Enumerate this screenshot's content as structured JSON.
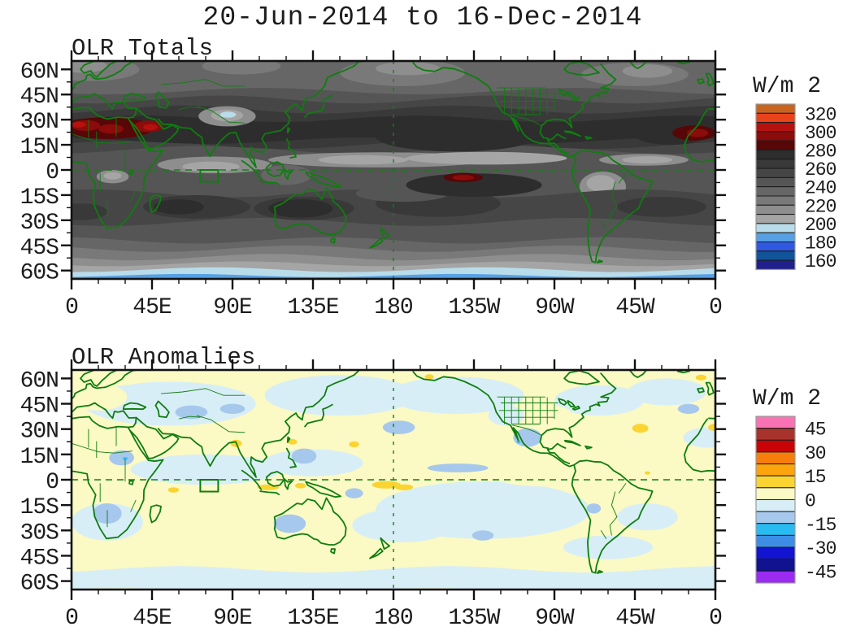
{
  "main_title": "20-Jun-2014 to 16-Dec-2014",
  "panels": [
    {
      "title": "OLR Totals",
      "units": "W/m 2"
    },
    {
      "title": "OLR Anomalies",
      "units": "W/m 2"
    }
  ],
  "colors": {
    "background": "#FFFFFF",
    "frame": "#111111",
    "text": "#1C1C1C",
    "coastline_green": "#0F7D0F",
    "grid_dash_green": "#138013"
  },
  "map_overlay": {
    "equator_line": "dashed green line at 0 latitude",
    "dateline_line": "dashed green vertical line at 180",
    "index_box": "green rectangle ~72-82E, 0-7S",
    "coastlines": "green with country/state borders"
  },
  "chart_data": [
    {
      "type": "heatmap",
      "title": "OLR Totals",
      "units": "W/m 2",
      "projection": "equirectangular",
      "lon_domain": [
        0,
        360
      ],
      "lat_domain": [
        -65,
        65
      ],
      "lon_ticks": [
        "0",
        "45E",
        "90E",
        "135E",
        "180",
        "135W",
        "90W",
        "45W",
        "0"
      ],
      "lat_ticks": [
        "60N",
        "45N",
        "30N",
        "15N",
        "0",
        "15S",
        "30S",
        "45S",
        "60S"
      ],
      "colorbar": {
        "position": "right",
        "orientation": "vertical",
        "range": [
          160,
          320
        ],
        "level_step": 10,
        "labels": [
          "320",
          "300",
          "280",
          "260",
          "240",
          "220",
          "200",
          "180",
          "160"
        ],
        "colors_top_to_bottom": [
          "#C8641E",
          "#E8431A",
          "#B5120F",
          "#8C0B0B",
          "#570707",
          "#2D2D2D",
          "#393939",
          "#464646",
          "#555555",
          "#666666",
          "#797979",
          "#8E8E8E",
          "#A5A5A5",
          "#B9DCEA",
          "#57A0E4",
          "#2E59E0",
          "#11549A",
          "#20208C"
        ]
      },
      "features": [
        {
          "region": "Sahara / Arabian Peninsula (0-50E, 18-32N)",
          "olr_wm2": "280-310",
          "shade": "dark red"
        },
        {
          "region": "West Africa near map right edge (15W, 15-27N)",
          "olr_wm2": "280-300",
          "shade": "dark red"
        },
        {
          "region": "SE tropical Pacific (150-130W, 2-8S)",
          "olr_wm2": "280-300",
          "shade": "dark red"
        },
        {
          "region": "Subtropical bands 15-35N and 12-30S",
          "olr_wm2": "260-280",
          "shade": "near-black gray"
        },
        {
          "region": "ITCZ 2-10N across Pacific and Atlantic",
          "olr_wm2": "200-220",
          "shade": "light gray"
        },
        {
          "region": "Congo basin and Amazon",
          "olr_wm2": "210-230",
          "shade": "light gray"
        },
        {
          "region": "Tibetan Plateau (85-95E, 30-35N)",
          "olr_wm2": "190-200",
          "shade": "pale blue"
        },
        {
          "region": "Southern Ocean 55-62S",
          "olr_wm2": "180-200",
          "shade": "pale blue"
        },
        {
          "region": "Antarctic margin 62-65S",
          "olr_wm2": "170-180",
          "shade": "medium blue"
        }
      ]
    },
    {
      "type": "heatmap",
      "title": "OLR Anomalies",
      "units": "W/m 2",
      "projection": "equirectangular",
      "lon_domain": [
        0,
        360
      ],
      "lat_domain": [
        -65,
        65
      ],
      "lon_ticks": [
        "0",
        "45E",
        "90E",
        "135E",
        "180",
        "135W",
        "90W",
        "45W",
        "0"
      ],
      "lat_ticks": [
        "60N",
        "45N",
        "30N",
        "15N",
        "0",
        "15S",
        "30S",
        "45S",
        "60S"
      ],
      "colorbar": {
        "position": "right",
        "orientation": "vertical",
        "range": [
          -45,
          45
        ],
        "level_step": 7.5,
        "labels": [
          "45",
          "30",
          "15",
          "0",
          "-15",
          "-30",
          "-45"
        ],
        "colors_top_to_bottom": [
          "#F973B4",
          "#A8322C",
          "#C80407",
          "#F87E0C",
          "#FCA40C",
          "#FBD431",
          "#FBF9C4",
          "#D8EEF7",
          "#A6C8EC",
          "#28BCF2",
          "#3E8DE4",
          "#1313D2",
          "#10128F",
          "#9B2BF0"
        ]
      },
      "features": [
        {
          "region": "Equatorial Pacific near date line (165E-170W, 0-6S)",
          "anomaly_wm2": "+7.5 to +15",
          "shade": "gold"
        },
        {
          "region": "Java Sea / Banda Sea (105-130E, 2-6S)",
          "anomaly_wm2": "+7.5 to +15",
          "shade": "gold"
        },
        {
          "region": "Bay of Bengal / Myanmar (~92E, 21N)",
          "anomaly_wm2": "+7.5 to +15",
          "shade": "gold"
        },
        {
          "region": "East of Taiwan (~123E, 22N) and ~158E, 21N",
          "anomaly_wm2": "+7.5 to +15",
          "shade": "gold"
        },
        {
          "region": "Central Indian Ocean (~57E, 6S)",
          "anomaly_wm2": "+7.5 to +15",
          "shade": "gold"
        },
        {
          "region": "Subtropical North Atlantic (~42W, 30N)",
          "anomaly_wm2": "+7.5 to +15",
          "shade": "gold"
        },
        {
          "region": "NE tropical Pacific 5-9N (180-130W)",
          "anomaly_wm2": "-7.5 to -15",
          "shade": "light blue"
        },
        {
          "region": "Sudan / Sahel (~27E, 13N)",
          "anomaly_wm2": "-7.5 to -15",
          "shade": "light blue"
        },
        {
          "region": "Southern Africa (~22E, 20S)",
          "anomaly_wm2": "-7.5 to -15",
          "shade": "light blue"
        },
        {
          "region": "Central Asia (60-95E, 38-45N)",
          "anomaly_wm2": "-7.5 to -15",
          "shade": "light blue"
        },
        {
          "region": "Western Australia (~122E, 25S)",
          "anomaly_wm2": "-7.5 to -15",
          "shade": "light blue"
        },
        {
          "region": "Mexico (~105W, 25N)",
          "anomaly_wm2": "-7.5 to -15",
          "shade": "light blue"
        },
        {
          "region": "Most remaining oceans",
          "anomaly_wm2": "-7.5 to +7.5",
          "shade": "pale yellow / pale blue"
        }
      ]
    }
  ]
}
